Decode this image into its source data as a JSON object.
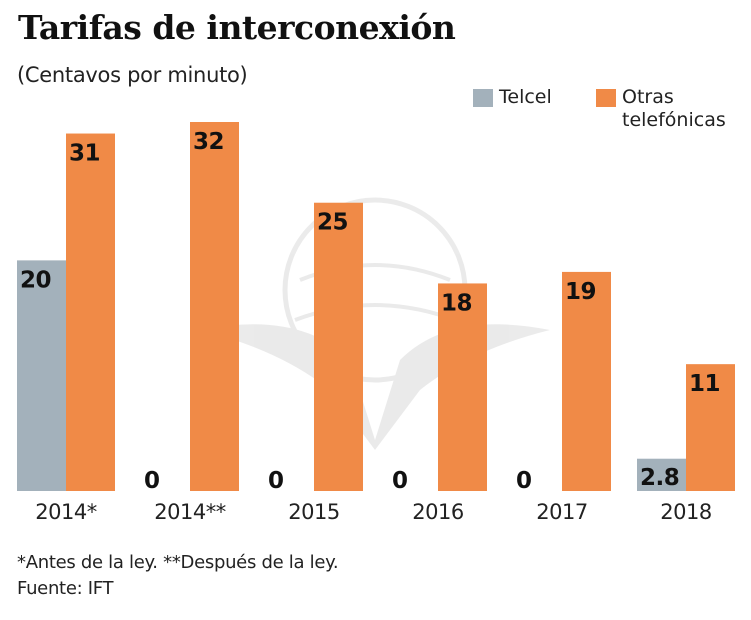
{
  "title": "Tarifas de interconexión",
  "subtitle": "(Centavos por minuto)",
  "colors": {
    "telcel": "#a3b1bb",
    "otras": "#f08a47",
    "label": "#111111",
    "axis": "#222222"
  },
  "chart_data": {
    "type": "bar",
    "title": "Tarifas de interconexión",
    "subtitle": "(Centavos por minuto)",
    "xlabel": "",
    "ylabel": "Centavos por minuto",
    "ylim": [
      0,
      32
    ],
    "grid": false,
    "legend_position": "top-right",
    "categories": [
      "2014*",
      "2014**",
      "2015",
      "2016",
      "2017",
      "2018"
    ],
    "series": [
      {
        "name": "Telcel",
        "values": [
          20,
          0,
          0,
          0,
          0,
          2.8
        ],
        "labels": [
          "20",
          "0",
          "0",
          "0",
          "0",
          "2.8"
        ]
      },
      {
        "name": "Otras telefónicas",
        "values": [
          31,
          32,
          25,
          18,
          19,
          11
        ],
        "labels": [
          "31",
          "32",
          "25",
          "18",
          "19",
          "11"
        ]
      }
    ]
  },
  "legend": {
    "items": [
      {
        "label": "Telcel"
      },
      {
        "label_line1": "Otras",
        "label_line2": "telefónicas"
      }
    ]
  },
  "footnotes": {
    "note": "*Antes de la ley. **Después de la ley.",
    "source": "Fuente: IFT"
  }
}
